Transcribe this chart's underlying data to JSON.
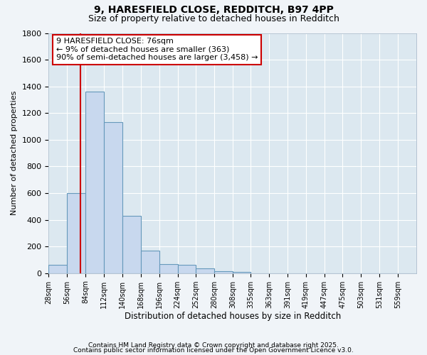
{
  "title1": "9, HARESFIELD CLOSE, REDDITCH, B97 4PP",
  "title2": "Size of property relative to detached houses in Redditch",
  "xlabel": "Distribution of detached houses by size in Redditch",
  "ylabel": "Number of detached properties",
  "bin_edges": [
    28,
    56,
    84,
    112,
    140,
    168,
    196,
    224,
    252,
    280,
    308,
    335,
    363,
    391,
    419,
    447,
    475,
    503,
    531,
    559,
    587
  ],
  "bar_heights": [
    60,
    600,
    1360,
    1130,
    430,
    170,
    70,
    65,
    35,
    15,
    10,
    0,
    0,
    0,
    0,
    0,
    0,
    0,
    0,
    0
  ],
  "bar_color": "#c8d8ee",
  "bar_edge_color": "#6699bb",
  "background_color": "#dce8f0",
  "fig_background": "#f0f4f8",
  "grid_color": "#ffffff",
  "vline_x": 76,
  "vline_color": "#cc0000",
  "ylim": [
    0,
    1800
  ],
  "yticks": [
    0,
    200,
    400,
    600,
    800,
    1000,
    1200,
    1400,
    1600,
    1800
  ],
  "annotation_text": "9 HARESFIELD CLOSE: 76sqm\n← 9% of detached houses are smaller (363)\n90% of semi-detached houses are larger (3,458) →",
  "footer1": "Contains HM Land Registry data © Crown copyright and database right 2025.",
  "footer2": "Contains public sector information licensed under the Open Government Licence v3.0."
}
